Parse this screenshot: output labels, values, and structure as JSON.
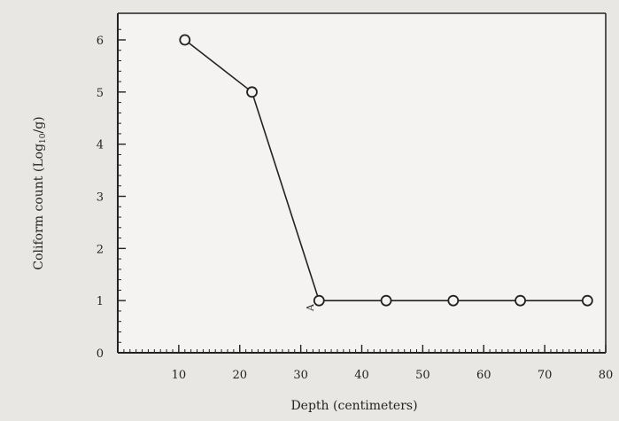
{
  "chart_data": {
    "type": "line",
    "xlabel": "Depth (centimeters)",
    "ylabel": "Coliform count (Log",
    "ylabel_sub": "10",
    "ylabel_suffix": "/g)",
    "xlim": [
      0,
      80
    ],
    "ylim": [
      0,
      6.5
    ],
    "x_ticks": [
      10,
      20,
      30,
      40,
      50,
      60,
      70,
      80
    ],
    "y_ticks": [
      0,
      1,
      2,
      3,
      4,
      5,
      6
    ],
    "grid": false,
    "marker": "open-circle",
    "annotation": "A",
    "series": [
      {
        "x": [
          11,
          22,
          33,
          44,
          55,
          66,
          77
        ],
        "y": [
          6,
          5,
          1,
          1,
          1,
          1,
          1
        ]
      }
    ]
  },
  "colors": {
    "background": "#e9e7e4",
    "ink": "#222222"
  }
}
